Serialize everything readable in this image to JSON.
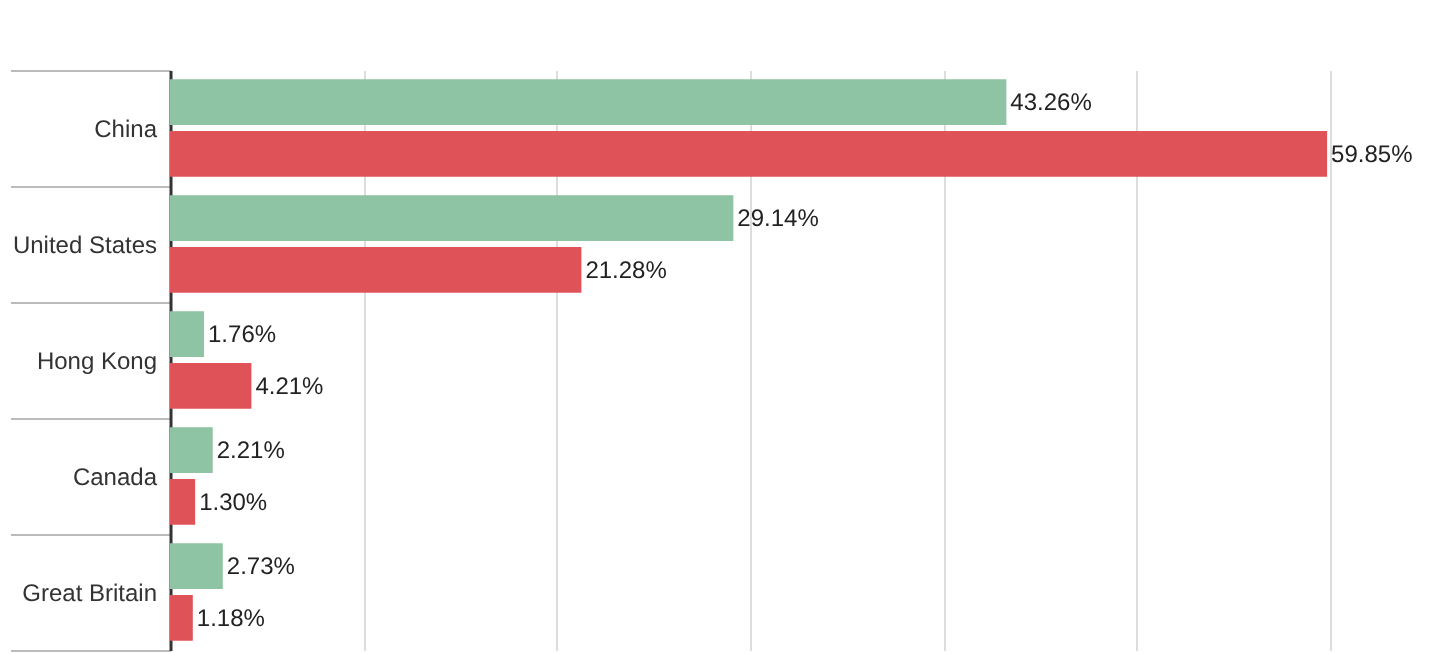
{
  "chart_data": {
    "type": "bar",
    "orientation": "horizontal",
    "categories": [
      "China",
      "United States",
      "Hong Kong",
      "Canada",
      "Great Britain"
    ],
    "series": [
      {
        "color": "#8ec3a3",
        "values": [
          43.26,
          29.14,
          1.76,
          2.21,
          2.73
        ],
        "value_labels": [
          "43.26%",
          "29.14%",
          "1.76%",
          "2.21%",
          "2.73%"
        ]
      },
      {
        "color": "#df5358",
        "values": [
          59.85,
          21.28,
          4.21,
          1.3,
          1.18
        ],
        "value_labels": [
          "59.85%",
          "21.28%",
          "4.21%",
          "1.30%",
          "1.18%"
        ]
      }
    ],
    "grid": "x",
    "tick_labels": "y"
  }
}
